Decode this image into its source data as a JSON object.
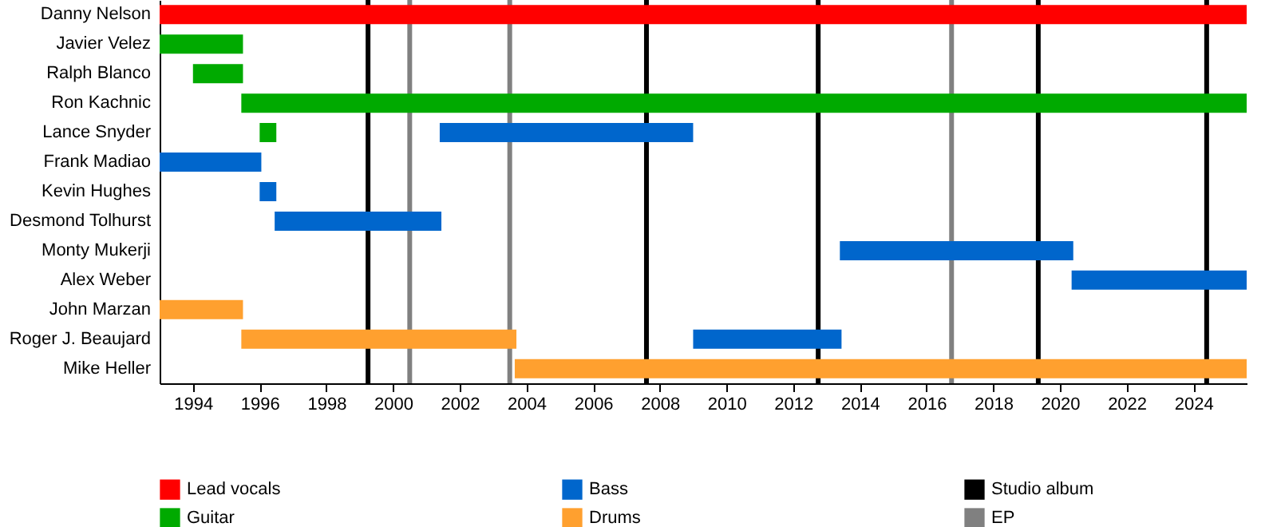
{
  "chart_data": {
    "type": "bar",
    "orientation": "horizontal",
    "legend": "bottom",
    "grid": false,
    "categories": [
      "Danny Nelson",
      "Javier Velez",
      "Ralph Blanco",
      "Ron Kachnic",
      "Lance Snyder",
      "Frank Madiao",
      "Kevin Hughes",
      "Desmond Tolhurst",
      "Monty Mukerji",
      "Alex Weber",
      "John Marzan",
      "Roger J. Beaujard",
      "Mike Heller"
    ],
    "series": [
      {
        "name": "Lead vocals",
        "color": "#ff0000",
        "base": [
          1993,
          null,
          null,
          null,
          null,
          null,
          null,
          null,
          null,
          null,
          null,
          null,
          null
        ],
        "values": [
          32.6,
          null,
          null,
          null,
          null,
          null,
          null,
          null,
          null,
          null,
          null,
          null,
          null
        ]
      },
      {
        "name": "Guitar",
        "color": "#00aa00",
        "base": [
          null,
          1993,
          1994,
          1995.45,
          1996,
          null,
          null,
          null,
          null,
          null,
          null,
          null,
          null
        ],
        "values": [
          null,
          2.5,
          1.5,
          30.15,
          0.5,
          null,
          null,
          null,
          null,
          null,
          null,
          null,
          null
        ]
      },
      {
        "name": "Bass",
        "color": "#0066cc",
        "base": [
          null,
          null,
          null,
          null,
          2001.4,
          1993,
          1996,
          1996.45,
          2013.4,
          2020.35,
          null,
          2009,
          null
        ],
        "values": [
          null,
          null,
          null,
          null,
          7.6,
          3.05,
          0.5,
          5,
          7,
          5.25,
          null,
          4.45,
          null
        ]
      },
      {
        "name": "Drums",
        "color": "#ffa02f",
        "base": [
          null,
          null,
          null,
          null,
          null,
          null,
          null,
          null,
          null,
          null,
          1993,
          1995.45,
          2003.65
        ],
        "values": [
          null,
          null,
          null,
          null,
          null,
          null,
          null,
          null,
          null,
          null,
          2.5,
          8.25,
          21.95
        ]
      }
    ],
    "ref_lines": [
      {
        "axis": "x",
        "value": 1999.25,
        "label": "Studio album",
        "color": "#000000"
      },
      {
        "axis": "x",
        "value": 2007.6,
        "color": "#000000"
      },
      {
        "axis": "x",
        "value": 2012.75,
        "color": "#000000"
      },
      {
        "axis": "x",
        "value": 2019.35,
        "color": "#000000"
      },
      {
        "axis": "x",
        "value": 2024.4,
        "color": "#000000"
      },
      {
        "axis": "x",
        "value": 2000.5,
        "label": "EP",
        "color": "#808080"
      },
      {
        "axis": "x",
        "value": 2003.5,
        "color": "#808080"
      },
      {
        "axis": "x",
        "value": 2016.75,
        "color": "#808080"
      }
    ],
    "xlim": [
      1993,
      2025.6
    ],
    "xticks": [
      1994,
      1996,
      1998,
      2000,
      2002,
      2004,
      2006,
      2008,
      2010,
      2012,
      2014,
      2016,
      2018,
      2020,
      2022,
      2024
    ]
  }
}
